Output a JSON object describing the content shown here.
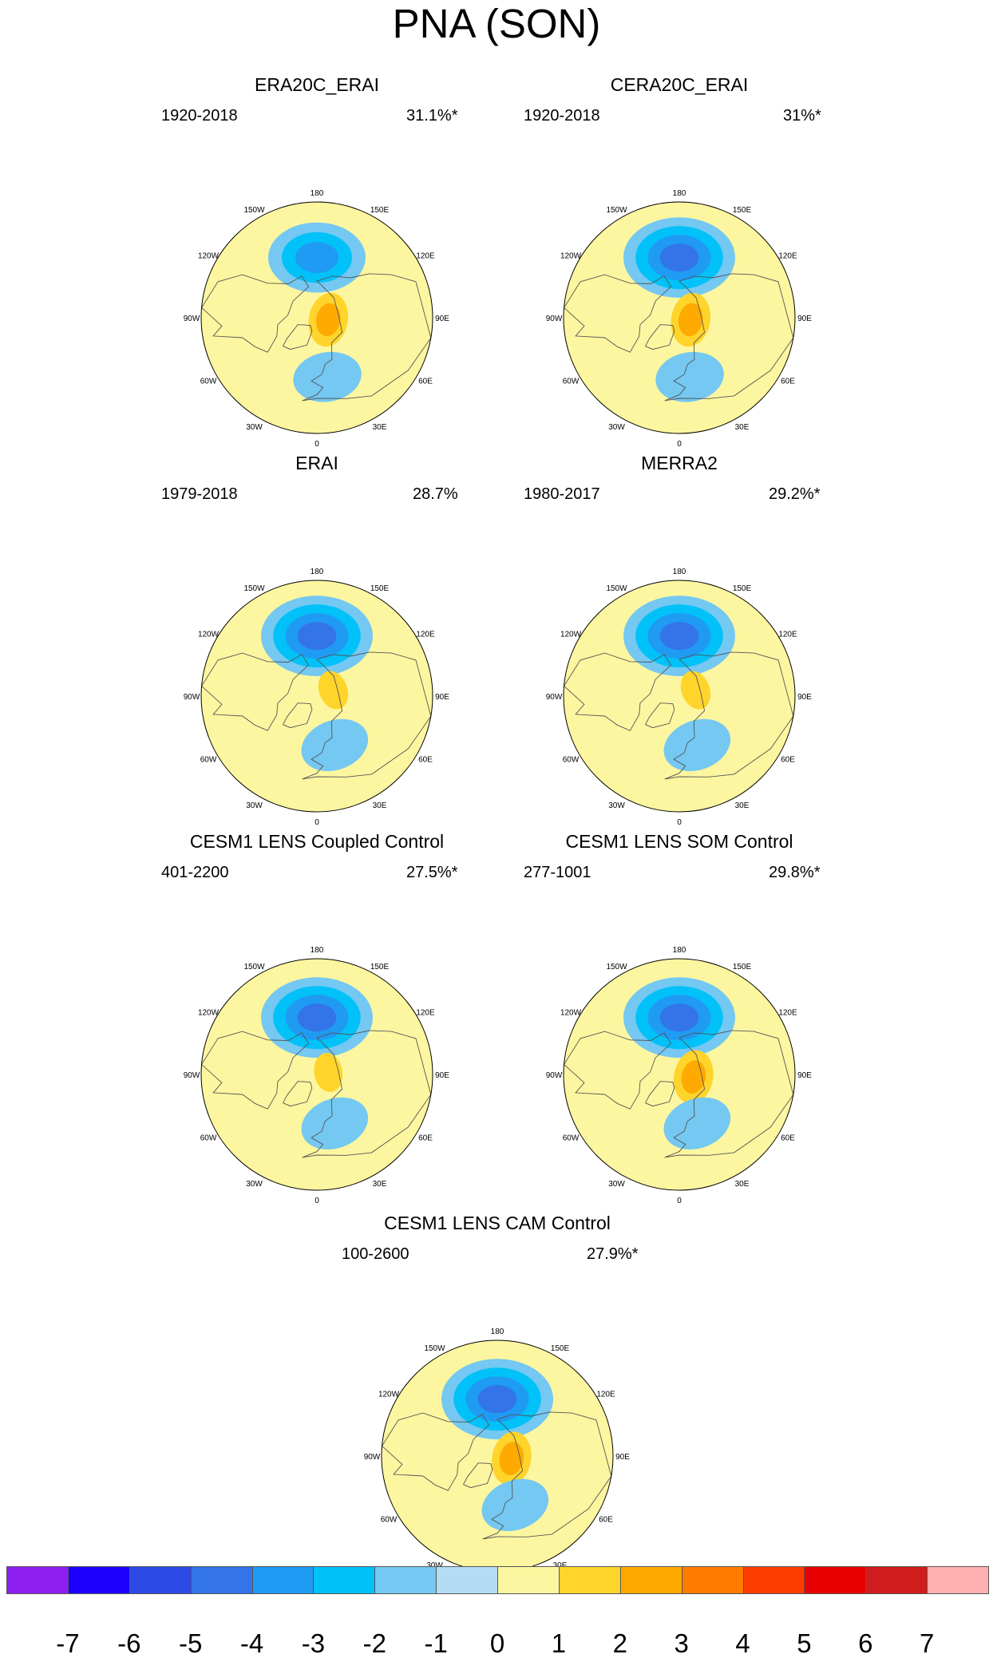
{
  "figure": {
    "title": "PNA (SON)"
  },
  "panels": [
    {
      "id": "era20c",
      "title": "ERA20C_ERAI",
      "period": "1920-2018",
      "percent": "31.1%*"
    },
    {
      "id": "cera20c",
      "title": "CERA20C_ERAI",
      "period": "1920-2018",
      "percent": "31%*"
    },
    {
      "id": "erai",
      "title": "ERAI",
      "period": "1979-2018",
      "percent": "28.7%"
    },
    {
      "id": "merra2",
      "title": "MERRA2",
      "period": "1980-2017",
      "percent": "29.2%*"
    },
    {
      "id": "coupled",
      "title": "CESM1 LENS Coupled Control",
      "period": "401-2200",
      "percent": "27.5%*"
    },
    {
      "id": "som",
      "title": "CESM1 LENS SOM Control",
      "period": "277-1001",
      "percent": "29.8%*"
    },
    {
      "id": "cam",
      "title": "CESM1 LENS CAM Control",
      "period": "100-2600",
      "percent": "27.9%*"
    }
  ],
  "longitude_labels": [
    "180",
    "150E",
    "120E",
    "90E",
    "60E",
    "30E",
    "0",
    "30W",
    "60W",
    "90W",
    "120W",
    "150W"
  ],
  "colorbar": {
    "colors": [
      "#8e1ff0",
      "#1e00ff",
      "#2c4ae6",
      "#3374e8",
      "#1f9bf3",
      "#00c2f8",
      "#74c8f2",
      "#b4ddf3",
      "#fdf6a0",
      "#ffd42b",
      "#ffaa00",
      "#ff7c00",
      "#ff3c00",
      "#e80000",
      "#d01c1c",
      "#ffb0b0"
    ],
    "labels": [
      "-7",
      "-6",
      "-5",
      "-4",
      "-3",
      "-2",
      "-1",
      "0",
      "1",
      "2",
      "3",
      "4",
      "5",
      "6",
      "7"
    ]
  },
  "chart_data": [
    {
      "type": "heatmap",
      "panel": "ERA20C_ERAI",
      "features": [
        {
          "name": "North Pacific low",
          "sign": "negative",
          "min_level": -3,
          "lon": 180,
          "lat": 50
        },
        {
          "name": "Arctic / Canada high",
          "sign": "positive",
          "max_level": 3,
          "lon": 80,
          "lat": 82
        },
        {
          "name": "North Atlantic / Europe low",
          "sign": "negative",
          "min_level": -1,
          "lon": 10,
          "lat": 50
        }
      ]
    },
    {
      "type": "heatmap",
      "panel": "CERA20C_ERAI",
      "features": [
        {
          "name": "North Pacific low",
          "sign": "negative",
          "min_level": -4,
          "lon": 180,
          "lat": 50
        },
        {
          "name": "Arctic / Canada high",
          "sign": "positive",
          "max_level": 3,
          "lon": 80,
          "lat": 82
        },
        {
          "name": "North Atlantic / Europe low",
          "sign": "negative",
          "min_level": -1,
          "lon": 10,
          "lat": 50
        }
      ]
    },
    {
      "type": "heatmap",
      "panel": "ERAI",
      "features": [
        {
          "name": "North Pacific low",
          "sign": "negative",
          "min_level": -4,
          "lon": 180,
          "lat": 50
        },
        {
          "name": "Arctic high",
          "sign": "positive",
          "max_level": 2,
          "lon": 110,
          "lat": 78
        },
        {
          "name": "North Atlantic low",
          "sign": "negative",
          "min_level": -1,
          "lon": 20,
          "lat": 55
        }
      ]
    },
    {
      "type": "heatmap",
      "panel": "MERRA2",
      "features": [
        {
          "name": "North Pacific low",
          "sign": "negative",
          "min_level": -4,
          "lon": 180,
          "lat": 50
        },
        {
          "name": "Arctic high",
          "sign": "positive",
          "max_level": 2,
          "lon": 110,
          "lat": 78
        },
        {
          "name": "North Atlantic low",
          "sign": "negative",
          "min_level": -1,
          "lon": 20,
          "lat": 55
        }
      ]
    },
    {
      "type": "heatmap",
      "panel": "CESM1 LENS Coupled Control",
      "features": [
        {
          "name": "North Pacific low",
          "sign": "negative",
          "min_level": -4,
          "lon": 180,
          "lat": 52
        },
        {
          "name": "Arctic high",
          "sign": "positive",
          "max_level": 2,
          "lon": 100,
          "lat": 82
        },
        {
          "name": "North Atlantic low",
          "sign": "negative",
          "min_level": -1,
          "lon": 20,
          "lat": 55
        }
      ]
    },
    {
      "type": "heatmap",
      "panel": "CESM1 LENS SOM Control",
      "features": [
        {
          "name": "North Pacific low",
          "sign": "negative",
          "min_level": -4,
          "lon": 180,
          "lat": 52
        },
        {
          "name": "Arctic high",
          "sign": "positive",
          "max_level": 3,
          "lon": 80,
          "lat": 80
        },
        {
          "name": "North Atlantic low",
          "sign": "negative",
          "min_level": -1,
          "lon": 20,
          "lat": 55
        }
      ]
    },
    {
      "type": "heatmap",
      "panel": "CESM1 LENS CAM Control",
      "features": [
        {
          "name": "North Pacific low",
          "sign": "negative",
          "min_level": -4,
          "lon": 180,
          "lat": 52
        },
        {
          "name": "Arctic high",
          "sign": "positive",
          "max_level": 3,
          "lon": 80,
          "lat": 80
        },
        {
          "name": "North Atlantic low",
          "sign": "negative",
          "min_level": -1,
          "lon": 20,
          "lat": 55
        }
      ]
    }
  ]
}
